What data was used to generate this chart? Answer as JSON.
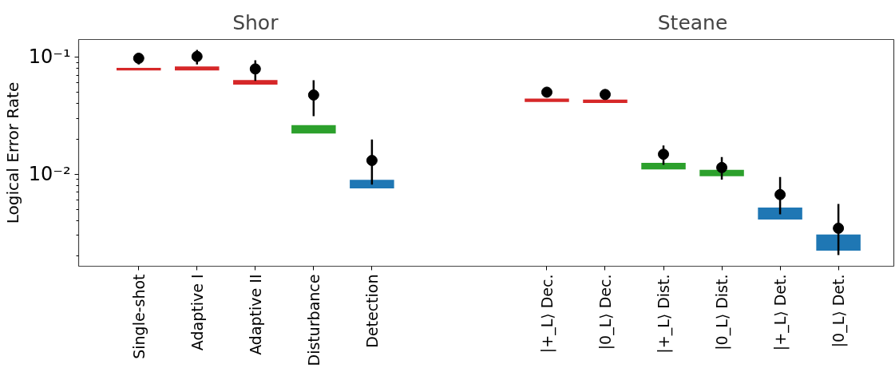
{
  "chart_data": {
    "type": "bar",
    "ylabel": "Logical Error Rate",
    "annotations": [
      "Shor",
      "Steane"
    ],
    "categories": [
      "Single-shot",
      "Adaptive I",
      "Adaptive II",
      "Disturbance",
      "Detection",
      null,
      null,
      "|+_L⟩ Dec.",
      "|0_L⟩ Dec.",
      "|+_L⟩ Dist.",
      "|0_L⟩ Dist.",
      "|+_L⟩ Det.",
      "|0_L⟩ Det."
    ],
    "ylim": [
      0.00164,
      0.141
    ],
    "yticks": [
      {
        "value": 0.01,
        "label": "10⁻²"
      },
      {
        "value": 0.1,
        "label": "10⁻¹"
      }
    ],
    "log": true,
    "grid": false,
    "series": [
      {
        "colors": [
          "#d62728",
          "#d62728",
          "#d62728",
          "#2ca02c",
          "#1f77b4",
          null,
          null,
          "#d62728",
          "#d62728",
          "#2ca02c",
          "#2ca02c",
          "#1f77b4",
          "#1f77b4"
        ],
        "base": [
          0.0769,
          0.0769,
          0.0582,
          0.0222,
          0.00757,
          null,
          null,
          0.0413,
          0.0405,
          0.011,
          0.00962,
          0.00411,
          0.00223
        ],
        "values": [
          0.0038,
          0.0063,
          0.0054,
          0.004,
          0.00138,
          null,
          null,
          0.0028,
          0.0029,
          0.0015,
          0.00128,
          0.00109,
          0.00083
        ]
      },
      {
        "type": "scatter",
        "color": "#000000",
        "marker": "circle",
        "values": [
          0.0975,
          0.101,
          0.0791,
          0.0474,
          0.0131,
          null,
          null,
          0.0501,
          0.0479,
          0.0148,
          0.0114,
          0.0067,
          0.00346
        ],
        "errors": [
          [
            0.0863,
            0.109
          ],
          [
            0.0863,
            0.115
          ],
          [
            0.0627,
            0.0938
          ],
          [
            0.0313,
            0.0633
          ],
          [
            0.00815,
            0.0198
          ],
          null,
          null,
          [
            0.0453,
            0.0544
          ],
          [
            0.0436,
            0.0529
          ],
          [
            0.012,
            0.0176
          ],
          [
            0.009,
            0.014
          ],
          [
            0.00454,
            0.00946
          ],
          [
            0.00204,
            0.00558
          ]
        ]
      }
    ]
  }
}
